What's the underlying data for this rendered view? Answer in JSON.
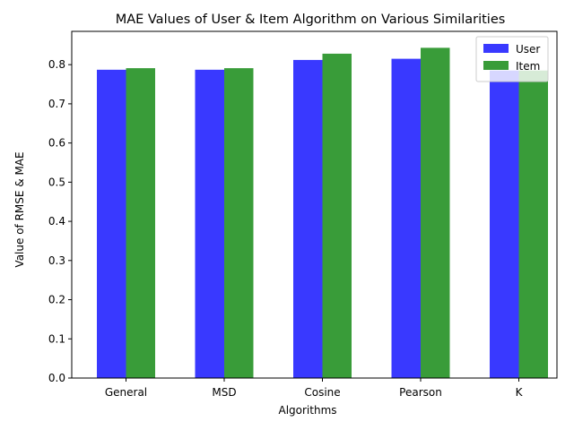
{
  "chart_data": {
    "type": "bar",
    "title": "MAE Values of User & Item Algorithm on Various Similarities",
    "xlabel": "Algorithms",
    "ylabel": "Value of RMSE & MAE",
    "categories": [
      "General",
      "MSD",
      "Cosine",
      "Pearson",
      "K"
    ],
    "series": [
      {
        "name": "User",
        "color": "#3333ff",
        "values": [
          0.787,
          0.787,
          0.812,
          0.815,
          0.785
        ]
      },
      {
        "name": "Item",
        "color": "#339933",
        "values": [
          0.791,
          0.791,
          0.828,
          0.843,
          0.785
        ]
      }
    ],
    "ylim": [
      0,
      0.885
    ],
    "yticks": [
      0.0,
      0.1,
      0.2,
      0.3,
      0.4,
      0.5,
      0.6,
      0.7,
      0.8
    ],
    "ytick_labels": [
      "0.0",
      "0.1",
      "0.2",
      "0.3",
      "0.4",
      "0.5",
      "0.6",
      "0.7",
      "0.8"
    ],
    "grid": false,
    "legend_position": "top-right"
  }
}
